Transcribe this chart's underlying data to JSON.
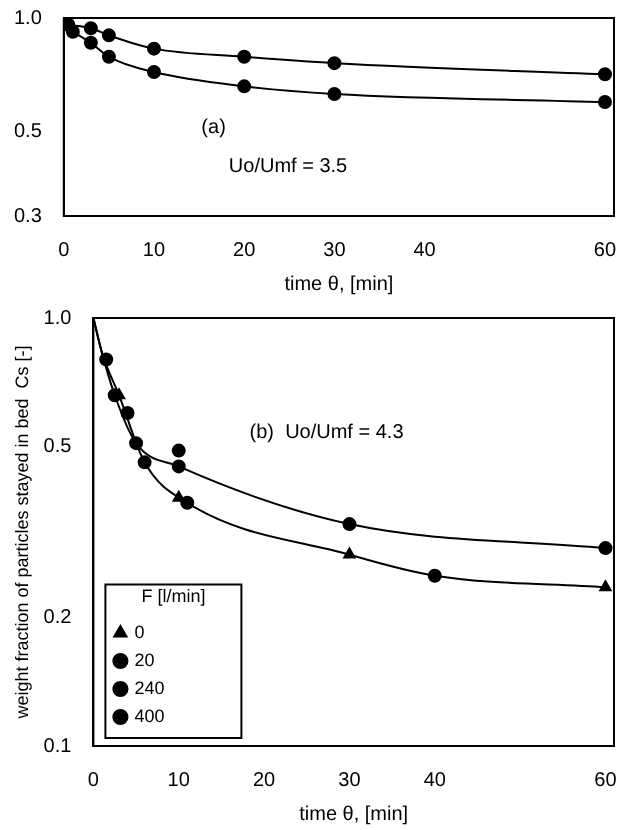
{
  "chart_data": [
    {
      "type": "line",
      "xlabel": "time θ, [min]",
      "annotations": [
        "(a)",
        "Uo/Umf = 3.5"
      ],
      "log": "y",
      "xlim": [
        0,
        61
      ],
      "xticks": [
        0,
        10,
        20,
        30,
        40,
        60
      ],
      "ylim": [
        0.3,
        1.0
      ],
      "yticks": [
        0.3,
        0.5,
        {
          "value": 1.0,
          "label": "1.0"
        }
      ],
      "marker": "circle",
      "grid": false,
      "series": [
        {
          "color": "#000000",
          "x": [
            0.5,
            3,
            5,
            10,
            20,
            30,
            60
          ],
          "values": [
            0.96,
            0.94,
            0.9,
            0.83,
            0.79,
            0.76,
            0.71
          ]
        },
        {
          "color": "#000000",
          "x": [
            1,
            3,
            5,
            10,
            20,
            30,
            60
          ],
          "values": [
            0.92,
            0.86,
            0.79,
            0.72,
            0.66,
            0.63,
            0.6
          ]
        }
      ]
    },
    {
      "type": "scatter",
      "xlabel": "time θ, [min]",
      "ylabel": "weight fraction of particles stayed in bed  Cs [-]",
      "annotations": [
        "(b)  Uo/Umf = 4.3"
      ],
      "log": "y",
      "xlim": [
        0,
        61
      ],
      "xticks": [
        0,
        10,
        20,
        30,
        40,
        60
      ],
      "ylim": [
        0.1,
        1.0
      ],
      "yticks": [
        0.1,
        0.2,
        0.5,
        {
          "value": 1.0,
          "label": "1.0"
        }
      ],
      "grid": false,
      "legend": "bottom left",
      "legend_title": "F [l/min]",
      "series": [
        {
          "name": "0",
          "color": "#000000",
          "marker": "triangle",
          "x": [
            3,
            10,
            30,
            60
          ],
          "values": [
            0.66,
            0.38,
            0.28,
            0.235
          ]
        },
        {
          "name": "20",
          "color": "#000000",
          "marker": "circle",
          "x": [
            1.5,
            4,
            10,
            60
          ],
          "values": [
            0.8,
            0.6,
            0.49,
            0.29
          ]
        },
        {
          "name": "240",
          "color": "#000000",
          "marker": "circle",
          "x": [
            2.5,
            5,
            10,
            30
          ],
          "values": [
            0.66,
            0.51,
            0.45,
            0.33
          ]
        },
        {
          "name": "400",
          "color": "#000000",
          "marker": "circle",
          "x": [
            6,
            11,
            40
          ],
          "values": [
            0.46,
            0.37,
            0.25
          ]
        },
        {
          "type": "line",
          "color": "#000000",
          "marker": "none",
          "x": [
            0,
            1,
            2.5,
            5,
            10,
            30,
            60
          ],
          "values": [
            1.0,
            0.83,
            0.66,
            0.51,
            0.45,
            0.33,
            0.29
          ]
        },
        {
          "type": "line",
          "color": "#000000",
          "marker": "none",
          "x": [
            0,
            1,
            3,
            6,
            11,
            30,
            40,
            60
          ],
          "values": [
            1.0,
            0.83,
            0.66,
            0.46,
            0.37,
            0.28,
            0.25,
            0.235
          ]
        }
      ]
    }
  ]
}
